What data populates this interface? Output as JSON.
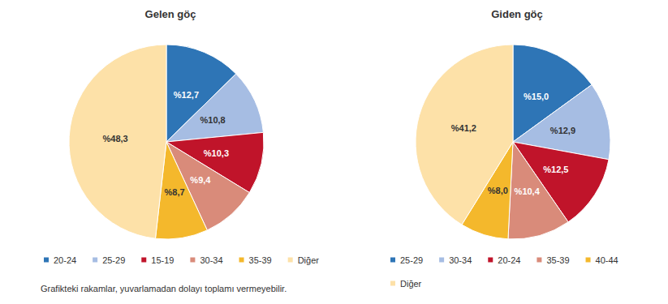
{
  "chart_data": [
    {
      "type": "pie",
      "title": "Gelen göç",
      "categories": [
        "20-24",
        "25-29",
        "15-19",
        "30-34",
        "35-39",
        "Diğer"
      ],
      "values": [
        12.7,
        10.8,
        10.3,
        9.4,
        8.7,
        48.3
      ],
      "value_labels": [
        "%12,7",
        "%10,8",
        "%10,3",
        "%9,4",
        "%8,7",
        "%48,3"
      ],
      "colors": [
        "#2e75b6",
        "#a6bde3",
        "#c0142a",
        "#d98b7a",
        "#f4b82c",
        "#fde1a8"
      ],
      "data_labels": true,
      "legend": "bottom"
    },
    {
      "type": "pie",
      "title": "Giden göç",
      "categories": [
        "25-29",
        "30-34",
        "20-24",
        "35-39",
        "40-44",
        "Diğer"
      ],
      "values": [
        15.0,
        12.9,
        12.5,
        10.4,
        8.0,
        41.2
      ],
      "value_labels": [
        "%15,0",
        "%12,9",
        "%12,5",
        "%10,4",
        "%8,0",
        "%41,2"
      ],
      "colors": [
        "#2e75b6",
        "#a6bde3",
        "#c0142a",
        "#d98b7a",
        "#f4b82c",
        "#fde1a8"
      ],
      "data_labels": true,
      "legend": "bottom"
    }
  ],
  "note": "Grafikteki rakamlar, yuvarlamadan dolayı toplamı vermeyebilir."
}
